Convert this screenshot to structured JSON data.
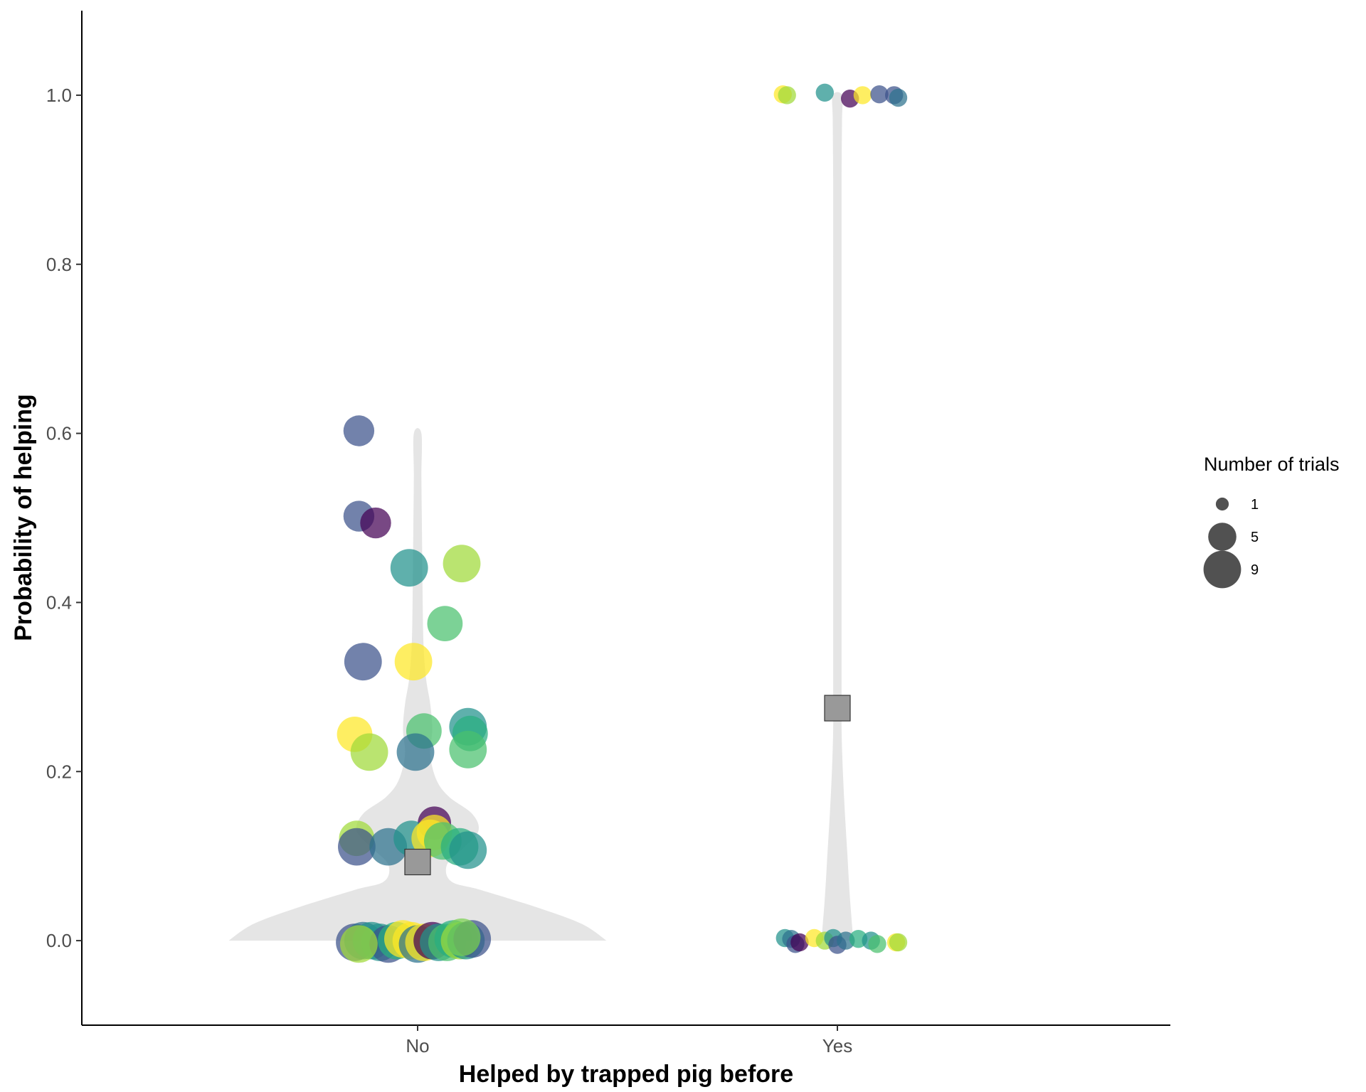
{
  "chart_data": {
    "type": "violin-scatter",
    "xlabel": "Helped by trapped pig before",
    "ylabel": "Probability of helping",
    "categories": [
      "No",
      "Yes"
    ],
    "ylim": [
      -0.1,
      1.1
    ],
    "y_ticks": [
      0.0,
      0.2,
      0.4,
      0.6,
      0.8,
      1.0
    ],
    "y_tick_labels": [
      "0.0",
      "0.2",
      "0.4",
      "0.6",
      "0.8",
      "1.0"
    ],
    "grid": false,
    "legend": {
      "title": "Number of trials",
      "position": "right",
      "items": [
        {
          "label": "1",
          "value": 1
        },
        {
          "label": "5",
          "value": 5
        },
        {
          "label": "9",
          "value": 9
        }
      ]
    },
    "violin_color": "#e5e5e5",
    "mean_marker_color": "#999999",
    "violins": [
      {
        "category": "No",
        "profile": [
          [
            0.0,
            0.45
          ],
          [
            0.02,
            0.39
          ],
          [
            0.04,
            0.28
          ],
          [
            0.06,
            0.15
          ],
          [
            0.07,
            0.08
          ],
          [
            0.09,
            0.07
          ],
          [
            0.11,
            0.11
          ],
          [
            0.13,
            0.145
          ],
          [
            0.15,
            0.13
          ],
          [
            0.17,
            0.075
          ],
          [
            0.19,
            0.045
          ],
          [
            0.22,
            0.03
          ],
          [
            0.25,
            0.035
          ],
          [
            0.28,
            0.03
          ],
          [
            0.31,
            0.02
          ],
          [
            0.35,
            0.014
          ],
          [
            0.4,
            0.012
          ],
          [
            0.45,
            0.011
          ],
          [
            0.5,
            0.01
          ],
          [
            0.55,
            0.009
          ],
          [
            0.6,
            0.009
          ]
        ]
      },
      {
        "category": "Yes",
        "profile": [
          [
            0.0,
            0.038
          ],
          [
            0.05,
            0.03
          ],
          [
            0.1,
            0.024
          ],
          [
            0.15,
            0.018
          ],
          [
            0.2,
            0.013
          ],
          [
            0.25,
            0.01
          ],
          [
            0.3,
            0.01
          ],
          [
            0.4,
            0.01
          ],
          [
            0.5,
            0.01
          ],
          [
            0.6,
            0.01
          ],
          [
            0.7,
            0.01
          ],
          [
            0.8,
            0.01
          ],
          [
            0.9,
            0.01
          ],
          [
            0.97,
            0.011
          ],
          [
            1.0,
            0.011
          ]
        ]
      }
    ],
    "means": [
      {
        "category": "No",
        "y": 0.093
      },
      {
        "category": "Yes",
        "y": 0.275
      }
    ],
    "series": [
      {
        "category": "No",
        "points": [
          {
            "x": -0.14,
            "y": 0.603,
            "trials": 6,
            "color": "#3b528b"
          },
          {
            "x": -0.14,
            "y": 0.502,
            "trials": 6,
            "color": "#3b528b"
          },
          {
            "x": -0.1,
            "y": 0.494,
            "trials": 6,
            "color": "#440154"
          },
          {
            "x": -0.02,
            "y": 0.441,
            "trials": 9,
            "color": "#21918c"
          },
          {
            "x": 0.105,
            "y": 0.446,
            "trials": 9,
            "color": "#a0da39"
          },
          {
            "x": 0.065,
            "y": 0.375,
            "trials": 8,
            "color": "#4ac16d"
          },
          {
            "x": -0.13,
            "y": 0.33,
            "trials": 9,
            "color": "#3b528b"
          },
          {
            "x": -0.01,
            "y": 0.33,
            "trials": 9,
            "color": "#fde725"
          },
          {
            "x": -0.15,
            "y": 0.244,
            "trials": 8,
            "color": "#fde725"
          },
          {
            "x": -0.115,
            "y": 0.223,
            "trials": 9,
            "color": "#a0da39"
          },
          {
            "x": 0.015,
            "y": 0.248,
            "trials": 8,
            "color": "#4ac16d"
          },
          {
            "x": -0.005,
            "y": 0.223,
            "trials": 9,
            "color": "#2c728e"
          },
          {
            "x": 0.12,
            "y": 0.253,
            "trials": 9,
            "color": "#21918c"
          },
          {
            "x": 0.125,
            "y": 0.245,
            "trials": 8,
            "color": "#28ae80"
          },
          {
            "x": 0.12,
            "y": 0.226,
            "trials": 9,
            "color": "#4ac16d"
          },
          {
            "x": 0.04,
            "y": 0.139,
            "trials": 7,
            "color": "#440154"
          },
          {
            "x": -0.145,
            "y": 0.121,
            "trials": 8,
            "color": "#a0da39"
          },
          {
            "x": -0.145,
            "y": 0.111,
            "trials": 9,
            "color": "#3b528b"
          },
          {
            "x": -0.07,
            "y": 0.111,
            "trials": 9,
            "color": "#2c728e"
          },
          {
            "x": -0.015,
            "y": 0.121,
            "trials": 8,
            "color": "#21918c"
          },
          {
            "x": 0.03,
            "y": 0.121,
            "trials": 9,
            "color": "#fde725"
          },
          {
            "x": 0.04,
            "y": 0.128,
            "trials": 8,
            "color": "#fde725"
          },
          {
            "x": 0.06,
            "y": 0.118,
            "trials": 9,
            "color": "#4ac16d"
          },
          {
            "x": 0.1,
            "y": 0.111,
            "trials": 9,
            "color": "#28ae80"
          },
          {
            "x": 0.12,
            "y": 0.107,
            "trials": 9,
            "color": "#21918c"
          },
          {
            "x": -0.15,
            "y": -0.002,
            "trials": 9,
            "color": "#3b528b"
          },
          {
            "x": -0.13,
            "y": 0.0,
            "trials": 9,
            "color": "#2c728e"
          },
          {
            "x": -0.11,
            "y": 0.0,
            "trials": 9,
            "color": "#21918c"
          },
          {
            "x": -0.09,
            "y": -0.002,
            "trials": 9,
            "color": "#21918c"
          },
          {
            "x": -0.07,
            "y": -0.004,
            "trials": 9,
            "color": "#3b528b"
          },
          {
            "x": -0.05,
            "y": 0.0,
            "trials": 9,
            "color": "#28ae80"
          },
          {
            "x": -0.035,
            "y": 0.002,
            "trials": 9,
            "color": "#fde725"
          },
          {
            "x": -0.015,
            "y": 0.0,
            "trials": 9,
            "color": "#fde725"
          },
          {
            "x": 0.0,
            "y": -0.004,
            "trials": 9,
            "color": "#2c728e"
          },
          {
            "x": 0.015,
            "y": -0.002,
            "trials": 9,
            "color": "#fde725"
          },
          {
            "x": 0.035,
            "y": 0.0,
            "trials": 9,
            "color": "#440154"
          },
          {
            "x": 0.05,
            "y": -0.002,
            "trials": 9,
            "color": "#21918c"
          },
          {
            "x": 0.07,
            "y": -0.002,
            "trials": 9,
            "color": "#4ac16d"
          },
          {
            "x": 0.085,
            "y": 0.002,
            "trials": 9,
            "color": "#28ae80"
          },
          {
            "x": 0.1,
            "y": 0.0,
            "trials": 9,
            "color": "#a0da39"
          },
          {
            "x": 0.115,
            "y": 0.0,
            "trials": 9,
            "color": "#21918c"
          },
          {
            "x": 0.13,
            "y": 0.002,
            "trials": 9,
            "color": "#3b528b"
          },
          {
            "x": 0.105,
            "y": 0.004,
            "trials": 9,
            "color": "#7ad151"
          },
          {
            "x": -0.14,
            "y": -0.004,
            "trials": 9,
            "color": "#a0da39"
          }
        ]
      },
      {
        "category": "Yes",
        "points": [
          {
            "x": -0.13,
            "y": 1.001,
            "trials": 2,
            "color": "#fde725"
          },
          {
            "x": -0.12,
            "y": 1.0,
            "trials": 2,
            "color": "#a0da39"
          },
          {
            "x": -0.03,
            "y": 1.003,
            "trials": 2,
            "color": "#21918c"
          },
          {
            "x": 0.03,
            "y": 0.996,
            "trials": 2,
            "color": "#440154"
          },
          {
            "x": 0.06,
            "y": 1.0,
            "trials": 2,
            "color": "#fde725"
          },
          {
            "x": 0.1,
            "y": 1.001,
            "trials": 2,
            "color": "#3b528b"
          },
          {
            "x": 0.135,
            "y": 1.0,
            "trials": 2,
            "color": "#3b528b"
          },
          {
            "x": 0.145,
            "y": 0.997,
            "trials": 2,
            "color": "#2c728e"
          },
          {
            "x": -0.125,
            "y": 0.003,
            "trials": 2,
            "color": "#21918c"
          },
          {
            "x": -0.11,
            "y": 0.002,
            "trials": 2,
            "color": "#2c728e"
          },
          {
            "x": -0.1,
            "y": -0.004,
            "trials": 2,
            "color": "#3b528b"
          },
          {
            "x": -0.09,
            "y": -0.002,
            "trials": 2,
            "color": "#440154"
          },
          {
            "x": -0.055,
            "y": 0.003,
            "trials": 2,
            "color": "#fde725"
          },
          {
            "x": -0.03,
            "y": 0.0,
            "trials": 2,
            "color": "#a0da39"
          },
          {
            "x": -0.01,
            "y": 0.003,
            "trials": 2,
            "color": "#21918c"
          },
          {
            "x": 0.0,
            "y": -0.005,
            "trials": 2,
            "color": "#3b528b"
          },
          {
            "x": 0.02,
            "y": 0.0,
            "trials": 2,
            "color": "#2c728e"
          },
          {
            "x": 0.05,
            "y": 0.002,
            "trials": 2,
            "color": "#28ae80"
          },
          {
            "x": 0.08,
            "y": 0.0,
            "trials": 2,
            "color": "#21918c"
          },
          {
            "x": 0.095,
            "y": -0.004,
            "trials": 2,
            "color": "#4ac16d"
          },
          {
            "x": 0.14,
            "y": -0.002,
            "trials": 2,
            "color": "#fde725"
          },
          {
            "x": 0.145,
            "y": -0.002,
            "trials": 2,
            "color": "#a0da39"
          }
        ]
      }
    ]
  }
}
